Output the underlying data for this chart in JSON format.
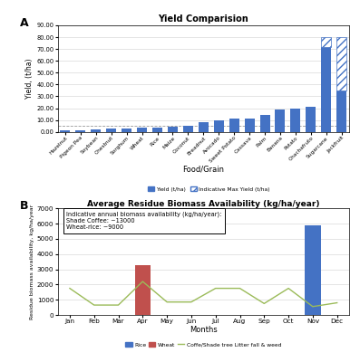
{
  "title_A": "Yield Comparision",
  "title_B": "Average Residue Biomass Availability (kg/ha/year)",
  "xlabel_A": "Food/Grain",
  "ylabel_A": "Yield, (t/ha)",
  "xlabel_B": "Months",
  "ylabel_B": "Residue biomass availability, kg/ha/year",
  "categories": [
    "Hazelnut",
    "Pigeon Pea",
    "Soybean",
    "Chestnut",
    "Sorghum",
    "Wheat",
    "Rice",
    "Maize",
    "Coconut",
    "Breadnut",
    "Avocado",
    "Sweet Potato",
    "Cassava",
    "Palm",
    "Banana",
    "Potato",
    "Chachafruto",
    "Sugarcane",
    "Jackfruit"
  ],
  "yields": [
    1.2,
    1.5,
    1.8,
    2.5,
    2.8,
    3.2,
    3.8,
    4.5,
    5.0,
    8.0,
    10.0,
    11.0,
    11.0,
    14.5,
    19.0,
    20.0,
    21.0,
    72.0,
    35.0
  ],
  "max_yields": [
    null,
    null,
    null,
    null,
    null,
    null,
    null,
    null,
    null,
    null,
    null,
    null,
    null,
    null,
    null,
    null,
    null,
    80.0,
    80.0
  ],
  "bar_color": "#4472C4",
  "ylim_A": [
    0,
    90
  ],
  "yticks_A": [
    0.0,
    10.0,
    20.0,
    30.0,
    40.0,
    50.0,
    60.0,
    70.0,
    80.0,
    90.0
  ],
  "months": [
    "Jan",
    "Feb",
    "Mar",
    "Apr",
    "May",
    "Jun",
    "Jul",
    "Aug",
    "Sep",
    "Oct",
    "Nov",
    "Dec"
  ],
  "rice": [
    0,
    0,
    0,
    0,
    0,
    0,
    0,
    0,
    0,
    0,
    5900,
    0
  ],
  "wheat": [
    0,
    0,
    0,
    3250,
    0,
    0,
    0,
    0,
    0,
    0,
    0,
    0
  ],
  "coffee": [
    1750,
    650,
    650,
    2200,
    850,
    850,
    1750,
    1750,
    750,
    1750,
    550,
    800
  ],
  "rice_color": "#4472C4",
  "wheat_color": "#C0504D",
  "coffee_color": "#9BBB59",
  "ylim_B": [
    0,
    7000
  ],
  "yticks_B": [
    0,
    1000,
    2000,
    3000,
    4000,
    5000,
    6000,
    7000
  ],
  "annotation": "Indicative annual biomass availability (kg/ha/year):\nShade Coffee: ~13000\nWheat-rice: ~9000",
  "legend_A_yield": "Yield (t/ha)",
  "legend_A_max": "Indicative Max Yield (t/ha)",
  "legend_B_rice": "Rice",
  "legend_B_wheat": "Wheat",
  "legend_B_coffee": "Coffe/Shade tree Litter fall & weed"
}
